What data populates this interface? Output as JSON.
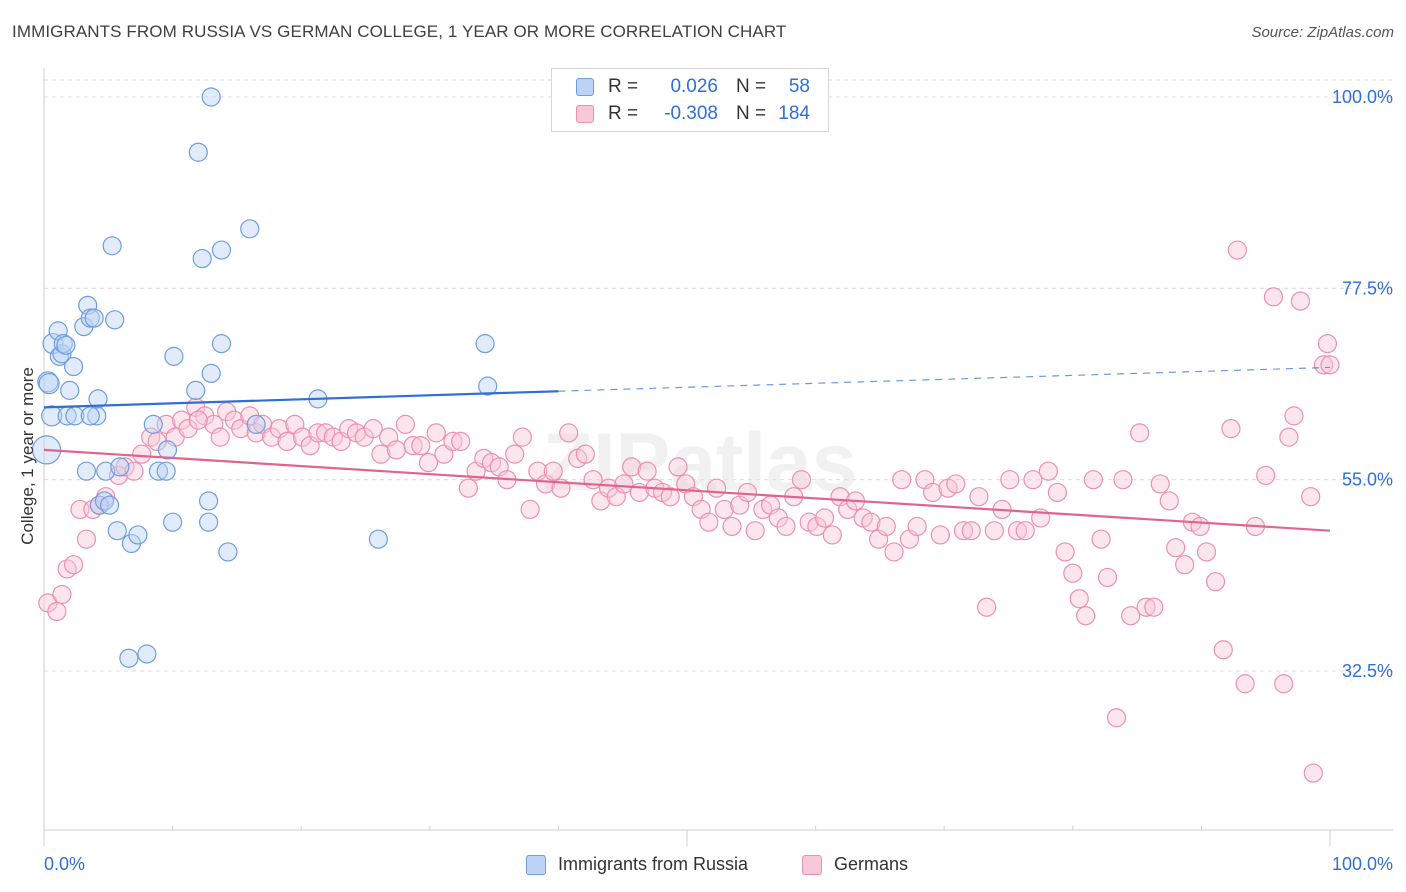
{
  "title": "IMMIGRANTS FROM RUSSIA VS GERMAN COLLEGE, 1 YEAR OR MORE CORRELATION CHART",
  "source": "Source: ZipAtlas.com",
  "watermark": "ZIPatlas",
  "legend": {
    "series1": {
      "r_label": "R =",
      "r_value": "0.026",
      "n_label": "N =",
      "n_value": "58"
    },
    "series2": {
      "r_label": "R =",
      "r_value": "-0.308",
      "n_label": "N =",
      "n_value": "184"
    }
  },
  "bottom_legend": {
    "series1": "Immigrants from Russia",
    "series2": "Germans"
  },
  "chart_data": {
    "type": "scatter",
    "title": "IMMIGRANTS FROM RUSSIA VS GERMAN COLLEGE, 1 YEAR OR MORE CORRELATION CHART",
    "xlabel": "",
    "ylabel": "College, 1 year or more",
    "xlim": [
      0,
      100
    ],
    "ylim": [
      14,
      102
    ],
    "x_tick_labels": [
      "0.0%",
      "100.0%"
    ],
    "y_ticks": [
      32.5,
      55.0,
      77.5,
      100.0
    ],
    "y_tick_labels": [
      "32.5%",
      "55.0%",
      "77.5%",
      "100.0%"
    ],
    "colors": {
      "blue": "#6e9de0",
      "blue_fill": "#bcd3f5",
      "blue_line": "#2f6fd6",
      "pink": "#eb90b1",
      "pink_fill": "#f8c8d8",
      "pink_line": "#e0648f"
    },
    "series": [
      {
        "name": "Immigrants from Russia",
        "color": "#6e9de0",
        "trend": {
          "x0": 0,
          "y0": 63.5,
          "x1": 40,
          "y1": 65.4,
          "dash_x1": 100,
          "dash_y1": 68.2
        },
        "points": [
          [
            0.2,
            58.5
          ],
          [
            0.3,
            66.5
          ],
          [
            0.4,
            66.3
          ],
          [
            0.6,
            62.5
          ],
          [
            0.7,
            71.0
          ],
          [
            1.1,
            72.5
          ],
          [
            1.2,
            69.5
          ],
          [
            1.4,
            69.8
          ],
          [
            1.5,
            71.0
          ],
          [
            1.7,
            70.8
          ],
          [
            1.8,
            62.5
          ],
          [
            2.0,
            65.5
          ],
          [
            2.3,
            68.3
          ],
          [
            2.4,
            62.5
          ],
          [
            3.1,
            73.0
          ],
          [
            3.4,
            75.5
          ],
          [
            3.6,
            74.0
          ],
          [
            3.9,
            74.0
          ],
          [
            4.1,
            62.5
          ],
          [
            4.2,
            64.5
          ],
          [
            3.6,
            62.5
          ],
          [
            3.3,
            56.0
          ],
          [
            4.3,
            52.0
          ],
          [
            4.7,
            52.5
          ],
          [
            4.8,
            56.0
          ],
          [
            5.1,
            52.0
          ],
          [
            5.5,
            73.8
          ],
          [
            5.3,
            82.5
          ],
          [
            5.7,
            49.0
          ],
          [
            5.9,
            56.5
          ],
          [
            6.6,
            34.0
          ],
          [
            6.8,
            47.5
          ],
          [
            7.3,
            48.5
          ],
          [
            8.0,
            34.5
          ],
          [
            8.5,
            61.5
          ],
          [
            8.9,
            56.0
          ],
          [
            9.5,
            56.0
          ],
          [
            9.6,
            58.5
          ],
          [
            10.0,
            50.0
          ],
          [
            10.1,
            69.5
          ],
          [
            11.8,
            65.5
          ],
          [
            12.3,
            81.0
          ],
          [
            12.0,
            93.5
          ],
          [
            12.8,
            52.5
          ],
          [
            12.8,
            50.0
          ],
          [
            13.0,
            67.5
          ],
          [
            13.0,
            100.0
          ],
          [
            13.8,
            82.0
          ],
          [
            13.8,
            71.0
          ],
          [
            14.3,
            46.5
          ],
          [
            16.0,
            84.5
          ],
          [
            16.5,
            61.5
          ],
          [
            21.3,
            64.5
          ],
          [
            26.0,
            48.0
          ],
          [
            34.3,
            71.0
          ],
          [
            34.5,
            66.0
          ]
        ]
      },
      {
        "name": "Germans",
        "color": "#eb90b1",
        "trend": {
          "x0": 0,
          "y0": 58.5,
          "x1": 100,
          "y1": 49.0
        },
        "points": [
          [
            0.3,
            40.5
          ],
          [
            1.0,
            39.5
          ],
          [
            1.4,
            41.5
          ],
          [
            1.8,
            44.5
          ],
          [
            2.3,
            45.0
          ],
          [
            2.8,
            51.5
          ],
          [
            3.3,
            48.0
          ],
          [
            3.8,
            51.5
          ],
          [
            4.3,
            52.0
          ],
          [
            4.8,
            53.0
          ],
          [
            5.8,
            55.5
          ],
          [
            6.3,
            56.5
          ],
          [
            7.0,
            56.0
          ],
          [
            7.6,
            58.0
          ],
          [
            8.3,
            60.0
          ],
          [
            8.8,
            59.5
          ],
          [
            9.5,
            61.5
          ],
          [
            10.2,
            60.0
          ],
          [
            10.7,
            62.0
          ],
          [
            11.2,
            61.0
          ],
          [
            11.8,
            63.5
          ],
          [
            12.5,
            62.5
          ],
          [
            13.2,
            61.5
          ],
          [
            13.7,
            60.0
          ],
          [
            14.2,
            63.0
          ],
          [
            14.8,
            62.0
          ],
          [
            15.3,
            61.0
          ],
          [
            16.0,
            62.5
          ],
          [
            16.5,
            60.5
          ],
          [
            17.0,
            61.5
          ],
          [
            17.7,
            60.0
          ],
          [
            18.3,
            61.0
          ],
          [
            18.9,
            59.5
          ],
          [
            19.5,
            61.5
          ],
          [
            20.1,
            60.0
          ],
          [
            20.7,
            59.0
          ],
          [
            21.3,
            60.5
          ],
          [
            21.9,
            60.5
          ],
          [
            22.5,
            60.0
          ],
          [
            23.1,
            59.5
          ],
          [
            23.7,
            61.0
          ],
          [
            24.3,
            60.5
          ],
          [
            24.9,
            60.0
          ],
          [
            25.6,
            61.0
          ],
          [
            26.2,
            58.0
          ],
          [
            26.8,
            60.0
          ],
          [
            27.4,
            58.5
          ],
          [
            28.1,
            61.5
          ],
          [
            28.7,
            59.0
          ],
          [
            29.3,
            59.0
          ],
          [
            29.9,
            57.0
          ],
          [
            30.5,
            60.5
          ],
          [
            31.1,
            58.0
          ],
          [
            31.8,
            59.5
          ],
          [
            32.4,
            59.5
          ],
          [
            33.0,
            54.0
          ],
          [
            33.6,
            56.0
          ],
          [
            34.2,
            57.5
          ],
          [
            34.8,
            57.0
          ],
          [
            35.4,
            56.5
          ],
          [
            36.0,
            55.0
          ],
          [
            36.6,
            58.0
          ],
          [
            37.2,
            60.0
          ],
          [
            37.8,
            51.5
          ],
          [
            38.4,
            56.0
          ],
          [
            39.0,
            54.5
          ],
          [
            39.6,
            56.0
          ],
          [
            40.2,
            54.0
          ],
          [
            40.8,
            60.5
          ],
          [
            41.5,
            57.5
          ],
          [
            42.1,
            58.0
          ],
          [
            42.7,
            55.0
          ],
          [
            43.3,
            52.5
          ],
          [
            43.9,
            54.0
          ],
          [
            44.5,
            53.0
          ],
          [
            45.1,
            54.5
          ],
          [
            45.7,
            56.5
          ],
          [
            46.3,
            53.5
          ],
          [
            46.9,
            56.0
          ],
          [
            47.5,
            54.0
          ],
          [
            48.1,
            53.5
          ],
          [
            48.7,
            53.0
          ],
          [
            49.3,
            56.5
          ],
          [
            49.9,
            54.5
          ],
          [
            50.5,
            53.0
          ],
          [
            51.1,
            51.5
          ],
          [
            51.7,
            50.0
          ],
          [
            52.3,
            54.0
          ],
          [
            52.9,
            51.5
          ],
          [
            53.5,
            49.5
          ],
          [
            54.1,
            52.0
          ],
          [
            54.7,
            53.5
          ],
          [
            55.3,
            49.0
          ],
          [
            55.9,
            51.5
          ],
          [
            56.5,
            52.0
          ],
          [
            57.1,
            50.5
          ],
          [
            57.7,
            49.5
          ],
          [
            58.3,
            53.0
          ],
          [
            58.9,
            55.0
          ],
          [
            59.5,
            50.0
          ],
          [
            60.1,
            49.5
          ],
          [
            60.7,
            50.5
          ],
          [
            61.3,
            48.5
          ],
          [
            61.9,
            53.0
          ],
          [
            62.5,
            51.5
          ],
          [
            63.1,
            52.5
          ],
          [
            63.7,
            50.5
          ],
          [
            64.3,
            50.0
          ],
          [
            64.9,
            48.0
          ],
          [
            65.5,
            49.5
          ],
          [
            66.1,
            46.5
          ],
          [
            66.7,
            55.0
          ],
          [
            67.3,
            48.0
          ],
          [
            67.9,
            49.5
          ],
          [
            68.5,
            55.0
          ],
          [
            69.1,
            53.5
          ],
          [
            69.7,
            48.5
          ],
          [
            70.3,
            54.0
          ],
          [
            70.9,
            54.5
          ],
          [
            71.5,
            49.0
          ],
          [
            72.1,
            49.0
          ],
          [
            72.7,
            53.0
          ],
          [
            73.3,
            40.0
          ],
          [
            73.9,
            49.0
          ],
          [
            74.5,
            51.5
          ],
          [
            75.1,
            55.0
          ],
          [
            75.7,
            49.0
          ],
          [
            76.3,
            49.0
          ],
          [
            76.9,
            55.0
          ],
          [
            77.5,
            50.5
          ],
          [
            78.1,
            56.0
          ],
          [
            78.8,
            53.5
          ],
          [
            79.4,
            46.5
          ],
          [
            80.0,
            44.0
          ],
          [
            80.5,
            41.0
          ],
          [
            81.0,
            39.0
          ],
          [
            81.6,
            55.0
          ],
          [
            82.2,
            48.0
          ],
          [
            82.7,
            43.5
          ],
          [
            83.4,
            27.0
          ],
          [
            83.9,
            55.0
          ],
          [
            84.5,
            39.0
          ],
          [
            85.2,
            60.5
          ],
          [
            85.7,
            40.0
          ],
          [
            86.3,
            40.0
          ],
          [
            86.8,
            54.5
          ],
          [
            87.5,
            52.5
          ],
          [
            88.0,
            47.0
          ],
          [
            88.7,
            45.0
          ],
          [
            89.3,
            50.0
          ],
          [
            89.9,
            49.5
          ],
          [
            90.4,
            46.5
          ],
          [
            91.1,
            43.0
          ],
          [
            91.7,
            35.0
          ],
          [
            92.3,
            61.0
          ],
          [
            92.8,
            82.0
          ],
          [
            93.4,
            31.0
          ],
          [
            94.2,
            49.5
          ],
          [
            95.0,
            55.5
          ],
          [
            95.6,
            76.5
          ],
          [
            96.4,
            31.0
          ],
          [
            96.8,
            60.0
          ],
          [
            97.2,
            62.5
          ],
          [
            97.7,
            76.0
          ],
          [
            98.5,
            53.0
          ],
          [
            98.7,
            20.5
          ],
          [
            99.5,
            68.5
          ],
          [
            99.8,
            71.0
          ],
          [
            100.0,
            68.5
          ],
          [
            12.0,
            62.0
          ]
        ]
      }
    ]
  }
}
